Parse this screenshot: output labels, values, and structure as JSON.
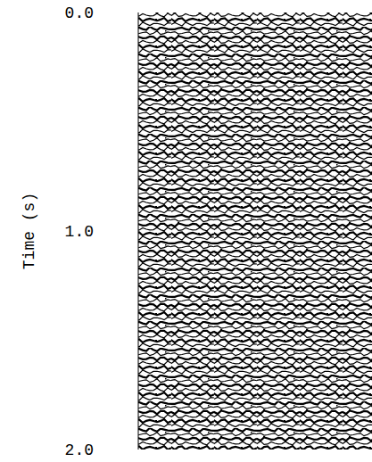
{
  "chart_data": {
    "type": "seismic",
    "y_label": "Time (s)",
    "ylim": [
      0,
      2
    ],
    "yticks": [
      {
        "value": 0,
        "label": "0.0"
      },
      {
        "value": 1,
        "label": "1.0"
      },
      {
        "value": 2,
        "label": "2.0"
      }
    ],
    "grid": false
  }
}
